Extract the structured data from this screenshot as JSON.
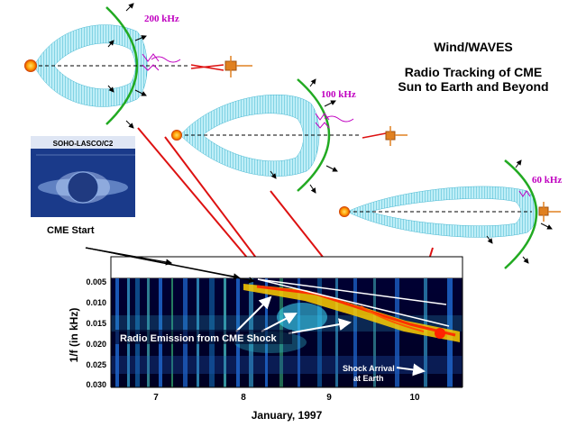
{
  "title": {
    "line1": "Wind/WAVES",
    "line2": "Radio Tracking of CME",
    "line3": "Sun to Earth and Beyond"
  },
  "cme_panels": [
    {
      "frequency_label": "200 kHz"
    },
    {
      "frequency_label": "100 kHz"
    },
    {
      "frequency_label": "60 kHz"
    }
  ],
  "coronagraph": {
    "label": "SOHO-LASCO/C2"
  },
  "annotations": {
    "cme_start": "CME  Start",
    "radio_emission": "Radio Emission from CME Shock",
    "shock_arrival_line1": "Shock Arrival",
    "shock_arrival_line2": "at Earth"
  },
  "spectrogram": {
    "ylabel": "1/f (in kHz)",
    "xlabel": "January, 1997",
    "y_ticks": [
      "0.005",
      "0.010",
      "0.015",
      "0.020",
      "0.025",
      "0.030"
    ],
    "x_ticks": [
      "7",
      "8",
      "9",
      "10"
    ]
  },
  "colors": {
    "cme_fill": "#7fd4e6",
    "shock_front": "#22aa22",
    "sun": "#ff9900",
    "frequency_text": "#c000c0",
    "pointer_lines": "#dd1111"
  }
}
